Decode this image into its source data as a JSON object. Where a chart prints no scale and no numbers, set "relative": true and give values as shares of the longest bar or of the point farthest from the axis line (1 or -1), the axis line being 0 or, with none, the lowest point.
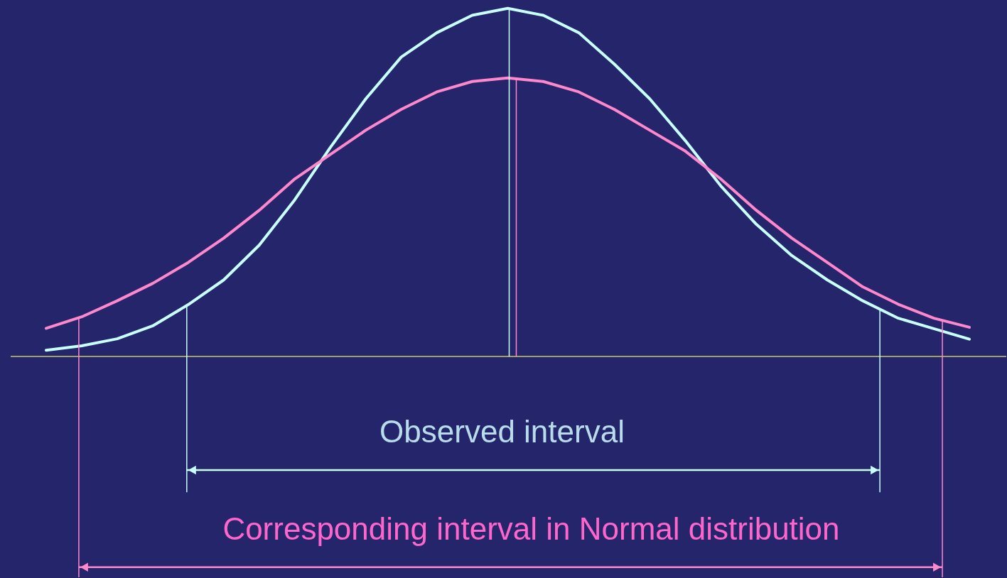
{
  "chart_data": {
    "type": "line",
    "relative": true,
    "tick_labels": false,
    "grid": false,
    "marker": "none",
    "line_style": "solid",
    "categories": [
      null,
      null,
      null,
      null,
      null,
      null,
      null,
      null,
      null,
      null,
      null,
      null,
      null,
      null,
      null,
      null,
      null,
      null,
      null,
      null,
      null,
      null,
      null,
      null,
      null,
      null,
      null
    ],
    "series": [
      {
        "color": "#c8ffff",
        "values": [
          0.018,
          0.031,
          0.051,
          0.088,
          0.149,
          0.22,
          0.32,
          0.45,
          0.6,
          0.74,
          0.86,
          0.93,
          0.98,
          1.0,
          0.98,
          0.93,
          0.84,
          0.74,
          0.62,
          0.49,
          0.38,
          0.29,
          0.22,
          0.16,
          0.11,
          0.08,
          0.05
        ]
      },
      {
        "color": "#ff88cc",
        "values": [
          0.081,
          0.114,
          0.16,
          0.21,
          0.27,
          0.34,
          0.42,
          0.51,
          0.58,
          0.65,
          0.71,
          0.76,
          0.79,
          0.8,
          0.79,
          0.76,
          0.71,
          0.65,
          0.59,
          0.51,
          0.42,
          0.34,
          0.27,
          0.2,
          0.15,
          0.11,
          0.084
        ]
      }
    ],
    "annotations": [
      "Observed interval",
      "Corresponding interval in Normal distribution"
    ]
  }
}
